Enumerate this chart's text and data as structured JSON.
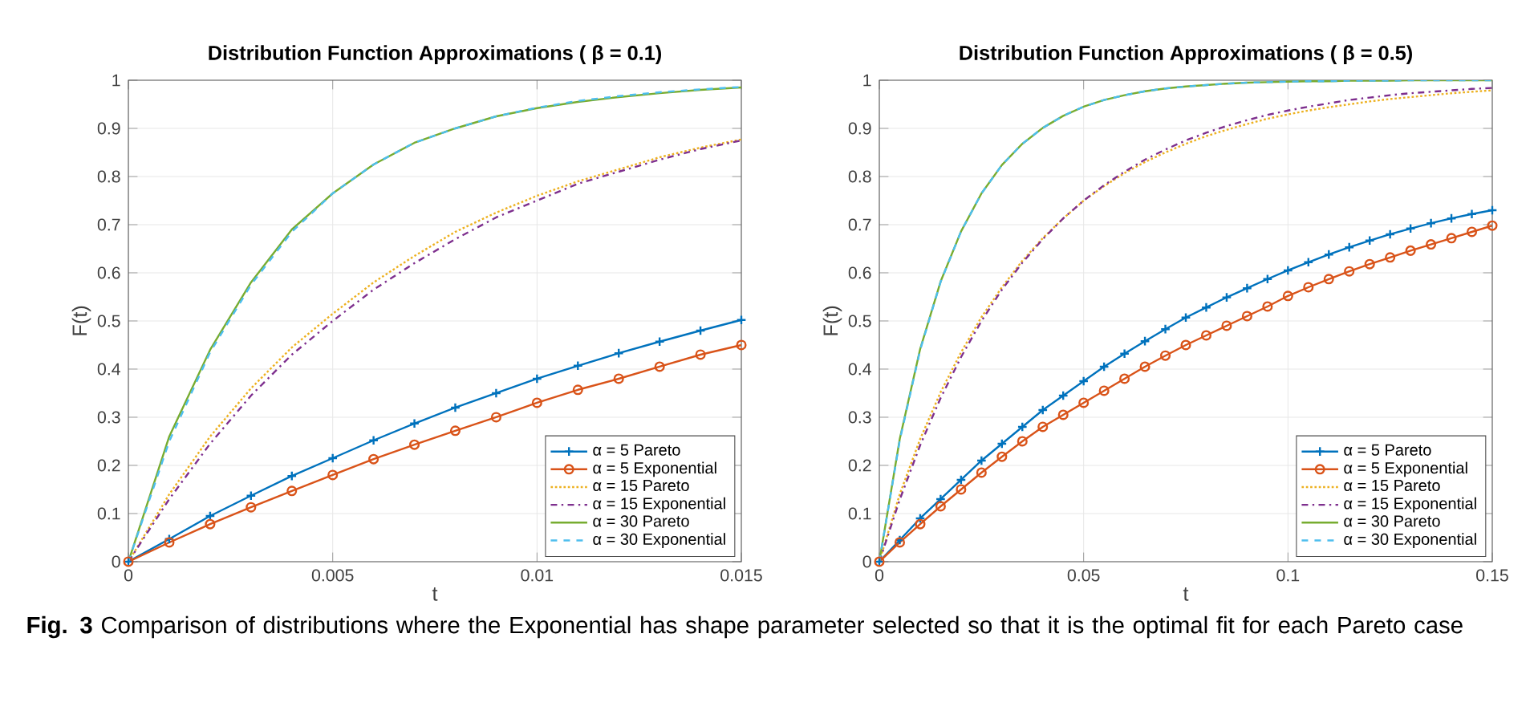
{
  "chart_data": [
    {
      "type": "line",
      "title": "Distribution Function Approximations ( β = 0.1)",
      "xlabel": "t",
      "ylabel": "F(t)",
      "x": [
        0,
        0.001,
        0.002,
        0.003,
        0.004,
        0.005,
        0.006,
        0.007,
        0.008,
        0.009,
        0.01,
        0.011,
        0.012,
        0.013,
        0.014,
        0.015
      ],
      "xlim": [
        0,
        0.015
      ],
      "xticks": [
        0,
        0.005,
        0.01,
        0.015
      ],
      "ylim": [
        0,
        1
      ],
      "yticks": [
        0,
        0.1,
        0.2,
        0.3,
        0.4,
        0.5,
        0.6,
        0.7,
        0.8,
        0.9,
        1
      ],
      "grid": true,
      "legend": "bottom right",
      "series": [
        {
          "name": "α = 5 Pareto",
          "color": "#0072bd",
          "marker": "cross",
          "line_style": "solid",
          "values": [
            0,
            0.047,
            0.095,
            0.137,
            0.178,
            0.215,
            0.252,
            0.287,
            0.32,
            0.35,
            0.38,
            0.407,
            0.433,
            0.457,
            0.48,
            0.502
          ]
        },
        {
          "name": "α = 5 Exponential",
          "color": "#d95319",
          "marker": "circle",
          "line_style": "solid",
          "values": [
            0,
            0.04,
            0.078,
            0.113,
            0.147,
            0.18,
            0.213,
            0.243,
            0.272,
            0.3,
            0.33,
            0.357,
            0.38,
            0.405,
            0.43,
            0.45
          ]
        },
        {
          "name": "α = 15 Pareto",
          "color": "#edb120",
          "marker": "none",
          "line_style": "dotted",
          "values": [
            0,
            0.14,
            0.26,
            0.36,
            0.445,
            0.515,
            0.58,
            0.635,
            0.685,
            0.725,
            0.76,
            0.79,
            0.815,
            0.84,
            0.86,
            0.877
          ]
        },
        {
          "name": "α = 15 Exponential",
          "color": "#7e2f8e",
          "marker": "none",
          "line_style": "dashdot",
          "values": [
            0,
            0.13,
            0.245,
            0.345,
            0.43,
            0.5,
            0.565,
            0.62,
            0.67,
            0.715,
            0.75,
            0.785,
            0.81,
            0.835,
            0.857,
            0.875
          ]
        },
        {
          "name": "α = 30 Pareto",
          "color": "#77ac30",
          "marker": "none",
          "line_style": "solid",
          "values": [
            0,
            0.26,
            0.44,
            0.58,
            0.69,
            0.765,
            0.825,
            0.87,
            0.9,
            0.925,
            0.942,
            0.955,
            0.965,
            0.973,
            0.98,
            0.985
          ]
        },
        {
          "name": "α = 30 Exponential",
          "color": "#4dbeee",
          "marker": "none",
          "line_style": "dashed",
          "values": [
            0,
            0.25,
            0.435,
            0.575,
            0.685,
            0.765,
            0.825,
            0.87,
            0.9,
            0.925,
            0.943,
            0.957,
            0.967,
            0.975,
            0.981,
            0.986
          ]
        }
      ],
      "annotations": [
        "**Fig. 3** Comparison of distributions where the Exponential has shape parameter selected so that it is the optimal fit for each Pareto case"
      ]
    },
    {
      "type": "line",
      "title": "Distribution Function Approximations ( β = 0.5)",
      "xlabel": "t",
      "ylabel": "F(t)",
      "x": [
        0,
        0.005,
        0.01,
        0.015,
        0.02,
        0.025,
        0.03,
        0.035,
        0.04,
        0.045,
        0.05,
        0.055,
        0.06,
        0.065,
        0.07,
        0.075,
        0.08,
        0.085,
        0.09,
        0.095,
        0.1,
        0.105,
        0.11,
        0.115,
        0.12,
        0.125,
        0.13,
        0.135,
        0.14,
        0.145,
        0.15
      ],
      "xlim": [
        0,
        0.15
      ],
      "xticks": [
        0,
        0.05,
        0.1,
        0.15
      ],
      "ylim": [
        0,
        1
      ],
      "yticks": [
        0,
        0.1,
        0.2,
        0.3,
        0.4,
        0.5,
        0.6,
        0.7,
        0.8,
        0.9,
        1
      ],
      "grid": true,
      "legend": "bottom right",
      "series": [
        {
          "name": "α = 5 Pareto",
          "color": "#0072bd",
          "marker": "cross",
          "line_style": "solid",
          "values": [
            0,
            0.045,
            0.09,
            0.13,
            0.17,
            0.21,
            0.245,
            0.28,
            0.315,
            0.345,
            0.375,
            0.405,
            0.432,
            0.458,
            0.483,
            0.507,
            0.528,
            0.549,
            0.568,
            0.587,
            0.605,
            0.622,
            0.638,
            0.653,
            0.667,
            0.68,
            0.692,
            0.703,
            0.713,
            0.722,
            0.73
          ]
        },
        {
          "name": "α = 5 Exponential",
          "color": "#d95319",
          "marker": "circle",
          "line_style": "solid",
          "values": [
            0,
            0.04,
            0.078,
            0.115,
            0.15,
            0.185,
            0.218,
            0.25,
            0.28,
            0.305,
            0.33,
            0.355,
            0.38,
            0.405,
            0.428,
            0.45,
            0.47,
            0.49,
            0.51,
            0.53,
            0.552,
            0.57,
            0.587,
            0.603,
            0.618,
            0.632,
            0.646,
            0.659,
            0.672,
            0.685,
            0.698
          ]
        },
        {
          "name": "α = 15 Pareto",
          "color": "#edb120",
          "marker": "none",
          "line_style": "dotted",
          "values": [
            0,
            0.14,
            0.255,
            0.352,
            0.435,
            0.508,
            0.57,
            0.625,
            0.672,
            0.713,
            0.75,
            0.78,
            0.807,
            0.83,
            0.85,
            0.868,
            0.884,
            0.897,
            0.909,
            0.92,
            0.929,
            0.937,
            0.944,
            0.95,
            0.956,
            0.961,
            0.965,
            0.969,
            0.973,
            0.976,
            0.979
          ]
        },
        {
          "name": "α = 15 Exponential",
          "color": "#7e2f8e",
          "marker": "none",
          "line_style": "dashdot",
          "values": [
            0,
            0.129,
            0.242,
            0.34,
            0.425,
            0.5,
            0.565,
            0.621,
            0.67,
            0.713,
            0.75,
            0.782,
            0.81,
            0.835,
            0.856,
            0.875,
            0.891,
            0.905,
            0.917,
            0.928,
            0.937,
            0.945,
            0.952,
            0.959,
            0.964,
            0.969,
            0.973,
            0.976,
            0.979,
            0.982,
            0.984
          ]
        },
        {
          "name": "α = 30 Pareto",
          "color": "#77ac30",
          "marker": "none",
          "line_style": "solid",
          "values": [
            0,
            0.255,
            0.442,
            0.582,
            0.686,
            0.765,
            0.824,
            0.868,
            0.901,
            0.926,
            0.945,
            0.959,
            0.969,
            0.977,
            0.983,
            0.987,
            0.99,
            0.993,
            0.995,
            0.996,
            0.997,
            0.998,
            0.998,
            0.999,
            0.999,
            0.999,
            1,
            1,
            1,
            1,
            1
          ]
        },
        {
          "name": "α = 30 Exponential",
          "color": "#4dbeee",
          "marker": "none",
          "line_style": "dashed",
          "values": [
            0,
            0.252,
            0.44,
            0.581,
            0.686,
            0.765,
            0.824,
            0.868,
            0.901,
            0.926,
            0.945,
            0.959,
            0.969,
            0.977,
            0.983,
            0.987,
            0.99,
            0.993,
            0.995,
            0.996,
            0.997,
            0.998,
            0.998,
            0.999,
            0.999,
            0.999,
            1,
            1,
            1,
            1,
            1
          ]
        }
      ]
    }
  ]
}
